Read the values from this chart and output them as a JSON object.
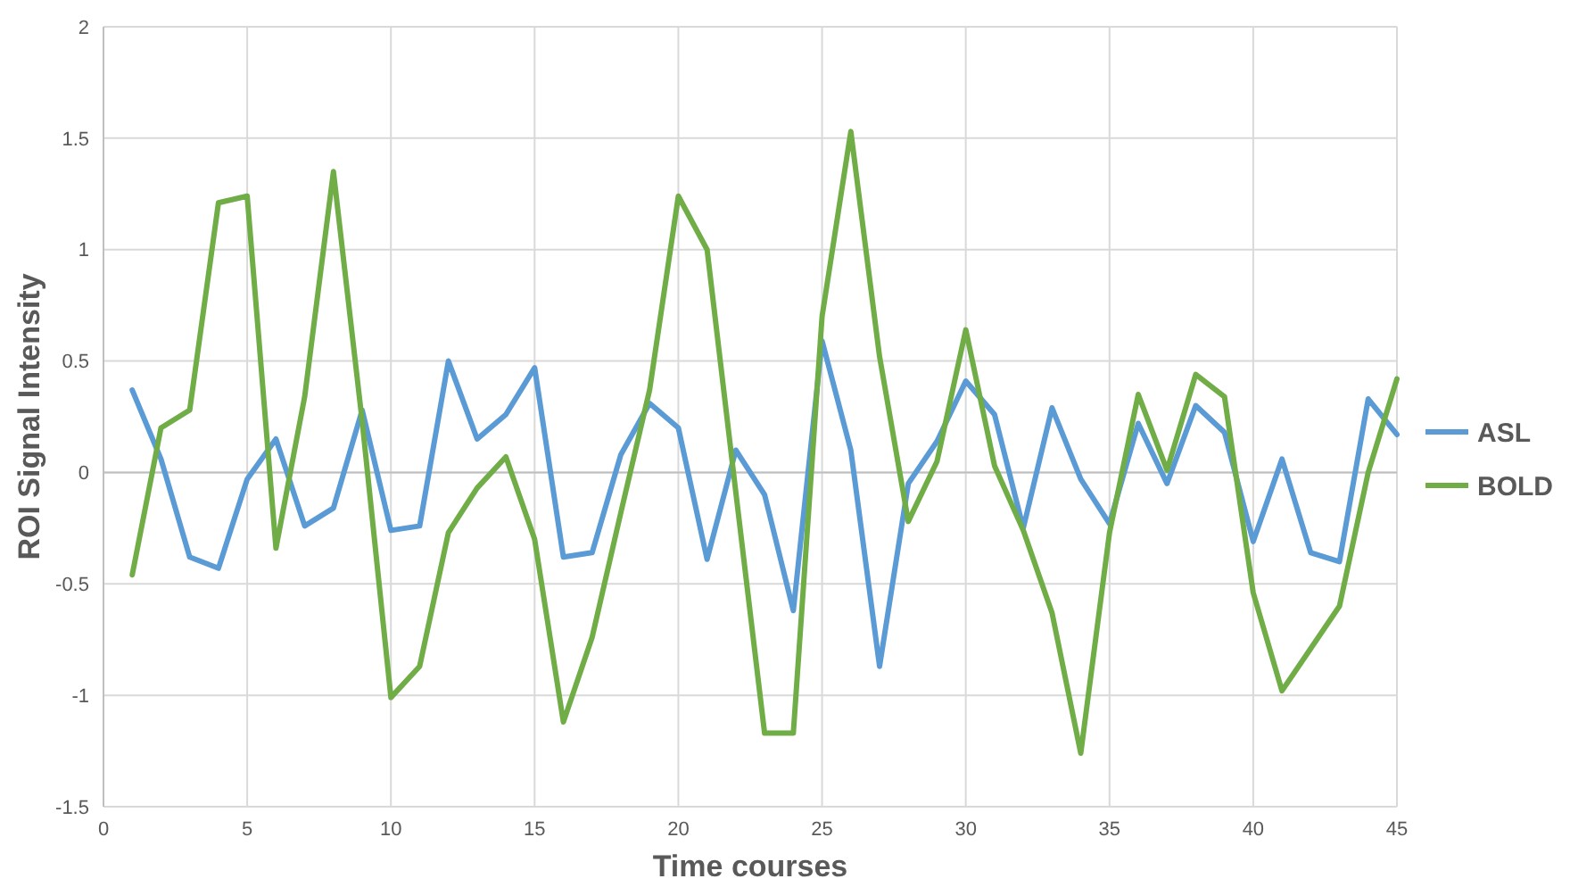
{
  "chart_data": {
    "type": "line",
    "xlabel": "Time courses",
    "ylabel": "ROI Signal Intensity",
    "x": [
      1,
      2,
      3,
      4,
      5,
      6,
      7,
      8,
      9,
      10,
      11,
      12,
      13,
      14,
      15,
      16,
      17,
      18,
      19,
      20,
      21,
      22,
      23,
      24,
      25,
      26,
      27,
      28,
      29,
      30,
      31,
      32,
      33,
      34,
      35,
      36,
      37,
      38,
      39,
      40,
      41,
      42,
      43,
      44,
      45
    ],
    "series": [
      {
        "name": "ASL",
        "color": "#5b9bd5",
        "values": [
          0.37,
          0.06,
          -0.38,
          -0.43,
          -0.03,
          0.15,
          -0.24,
          -0.16,
          0.28,
          -0.26,
          -0.24,
          0.5,
          0.15,
          0.26,
          0.47,
          -0.38,
          -0.36,
          0.08,
          0.31,
          0.2,
          -0.39,
          0.1,
          -0.1,
          -0.62,
          0.59,
          0.1,
          -0.87,
          -0.05,
          0.14,
          0.41,
          0.26,
          -0.25,
          0.29,
          -0.03,
          -0.23,
          0.22,
          -0.05,
          0.3,
          0.18,
          -0.31,
          0.06,
          -0.36,
          -0.4,
          0.33,
          0.17
        ]
      },
      {
        "name": "BOLD",
        "color": "#70ad47",
        "values": [
          -0.46,
          0.2,
          0.28,
          1.21,
          1.24,
          -0.34,
          0.34,
          1.35,
          0.23,
          -1.01,
          -0.87,
          -0.27,
          -0.07,
          0.07,
          -0.3,
          -1.12,
          -0.74,
          -0.18,
          0.37,
          1.24,
          1.0,
          -0.09,
          -1.17,
          -1.17,
          0.7,
          1.53,
          0.52,
          -0.22,
          0.05,
          0.64,
          0.03,
          -0.26,
          -0.63,
          -1.26,
          -0.27,
          0.35,
          0.01,
          0.44,
          0.34,
          -0.54,
          -0.98,
          -0.79,
          -0.6,
          0.0,
          0.42
        ]
      }
    ],
    "xlim": [
      0,
      45
    ],
    "xticks": [
      0,
      5,
      10,
      15,
      20,
      25,
      30,
      35,
      40,
      45
    ],
    "ylim": [
      -1.5,
      2
    ],
    "yticks": [
      -1.5,
      -1,
      -0.5,
      0,
      0.5,
      1,
      1.5,
      2
    ],
    "grid": true,
    "legend": "right",
    "marker": "none",
    "line_style": "solid"
  }
}
